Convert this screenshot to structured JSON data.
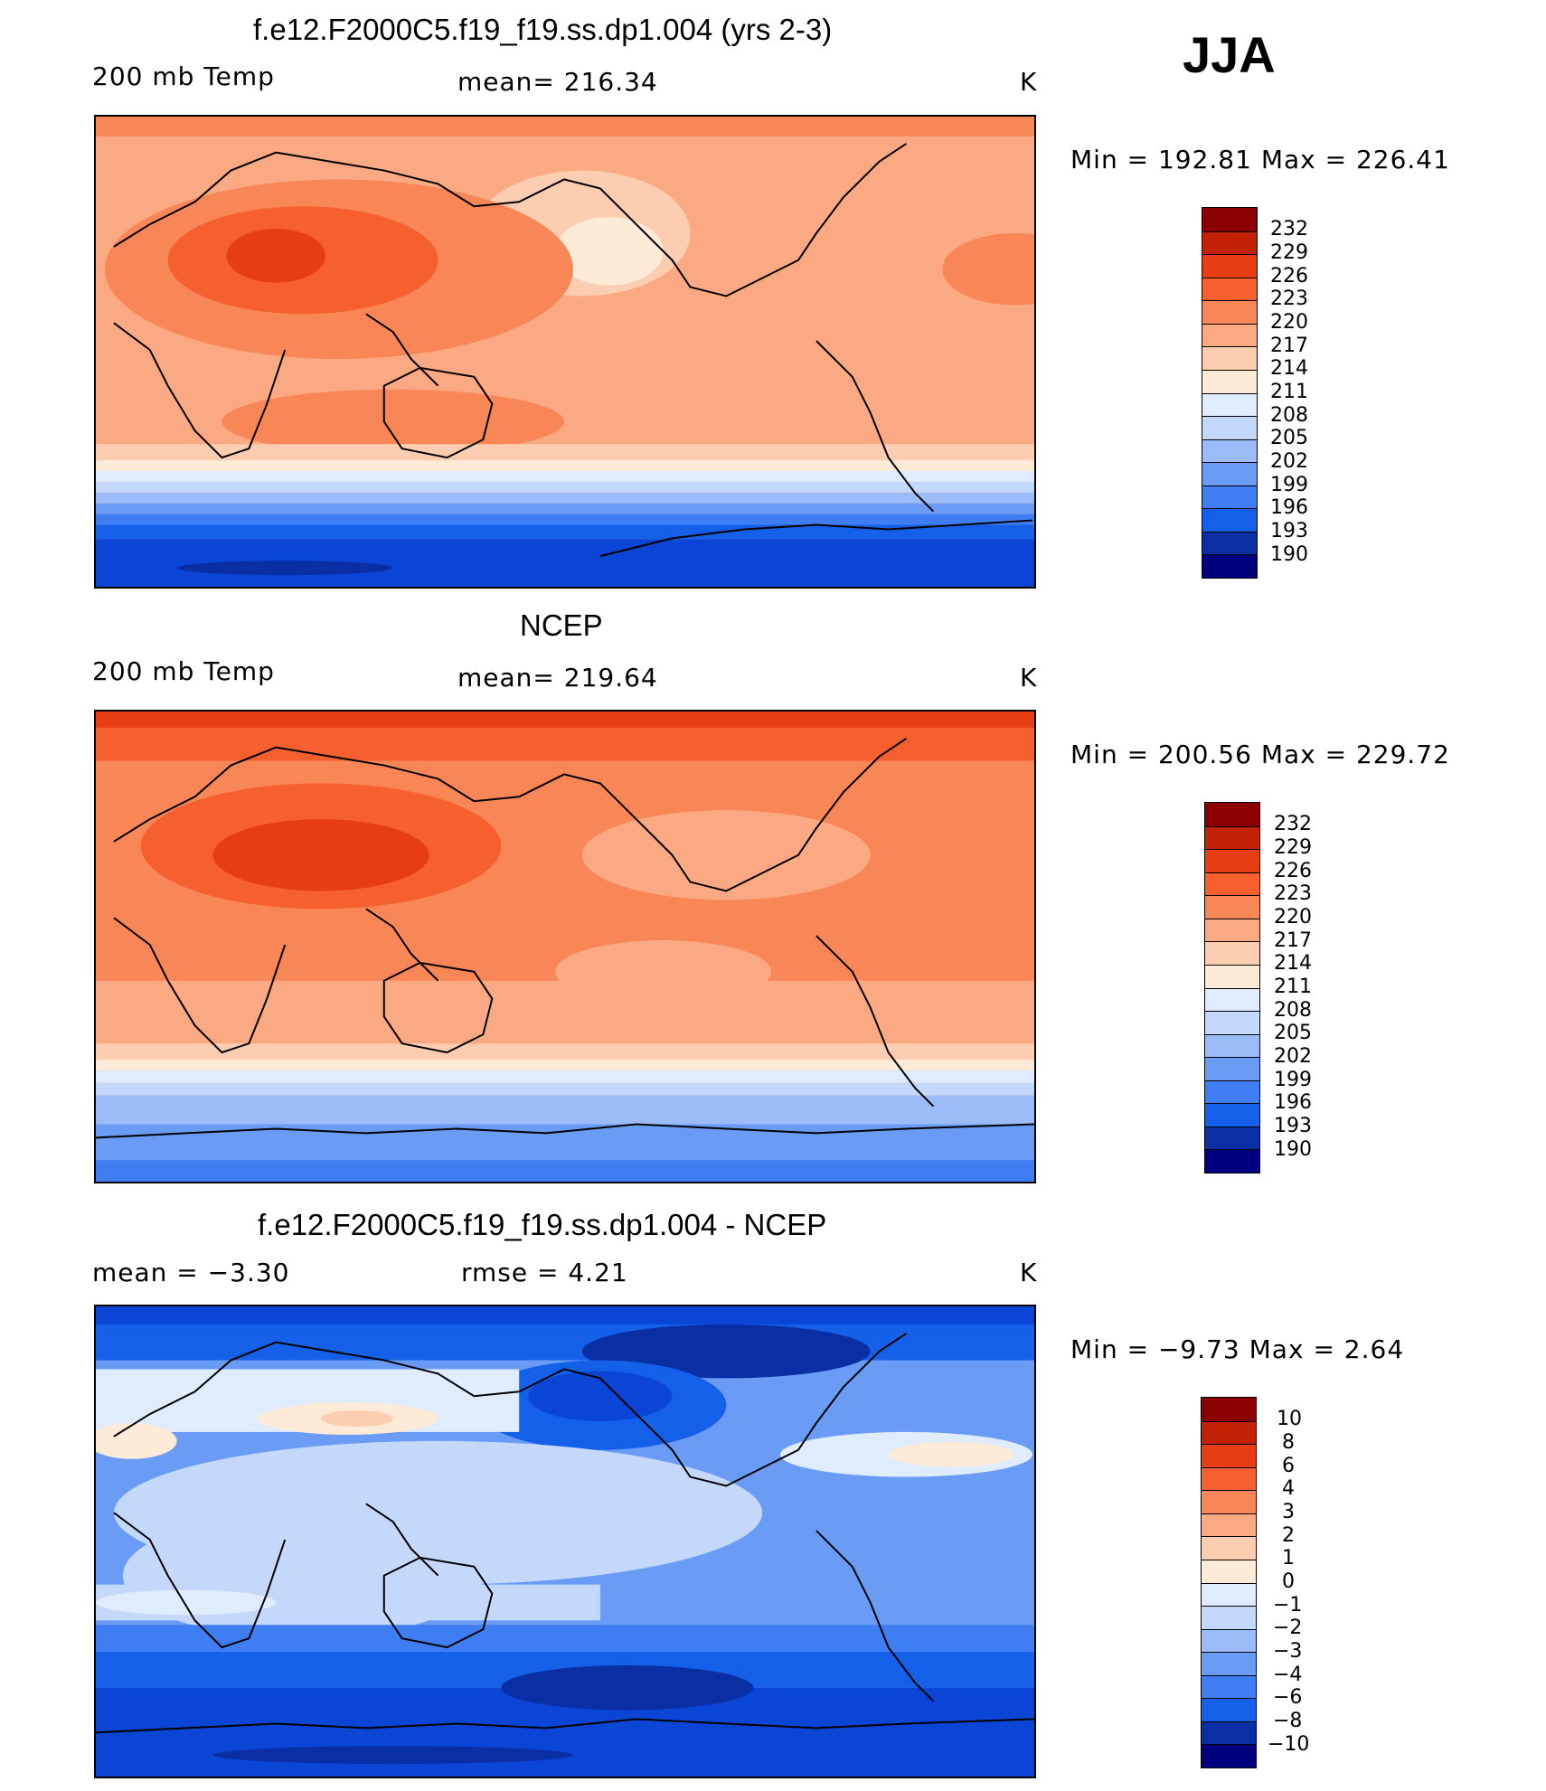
{
  "season": "JJA",
  "colors": {
    "scale": [
      "#00007f",
      "#0a2ea3",
      "#0b45d6",
      "#1460e8",
      "#3e7df2",
      "#6a9cf6",
      "#9bbcf8",
      "#c3d8fb",
      "#dfecfd",
      "#fdebd8",
      "#fccdb0",
      "#fba982",
      "#f98656",
      "#f6602e",
      "#e73d13",
      "#c22306",
      "#8b0000"
    ]
  },
  "panels": [
    {
      "title": "f.e12.F2000C5.f19_f19.ss.dp1.004 (yrs 2-3)",
      "left_label": "200 mb Temp",
      "center_label": "mean=  216.34",
      "units": "K",
      "minmax": "Min  =  192.81  Max  =  226.41",
      "colorbar_ticks": [
        "232",
        "229",
        "226",
        "223",
        "220",
        "217",
        "214",
        "211",
        "208",
        "205",
        "202",
        "199",
        "196",
        "193",
        "190"
      ]
    },
    {
      "title": "NCEP",
      "left_label": "200 mb Temp",
      "center_label": "mean=  219.64",
      "units": "K",
      "minmax": "Min  =  200.56  Max  =  229.72",
      "colorbar_ticks": [
        "232",
        "229",
        "226",
        "223",
        "220",
        "217",
        "214",
        "211",
        "208",
        "205",
        "202",
        "199",
        "196",
        "193",
        "190"
      ]
    },
    {
      "title": "f.e12.F2000C5.f19_f19.ss.dp1.004 - NCEP",
      "left_label": "mean =    −3.30",
      "center_label": "rmse =     4.21",
      "units": "K",
      "minmax": "Min  =    −9.73  Max  =     2.64",
      "colorbar_ticks": [
        "10",
        "8",
        "6",
        "4",
        "3",
        "2",
        "1",
        "0",
        "−1",
        "−2",
        "−3",
        "−4",
        "−6",
        "−8",
        "−10"
      ]
    }
  ]
}
